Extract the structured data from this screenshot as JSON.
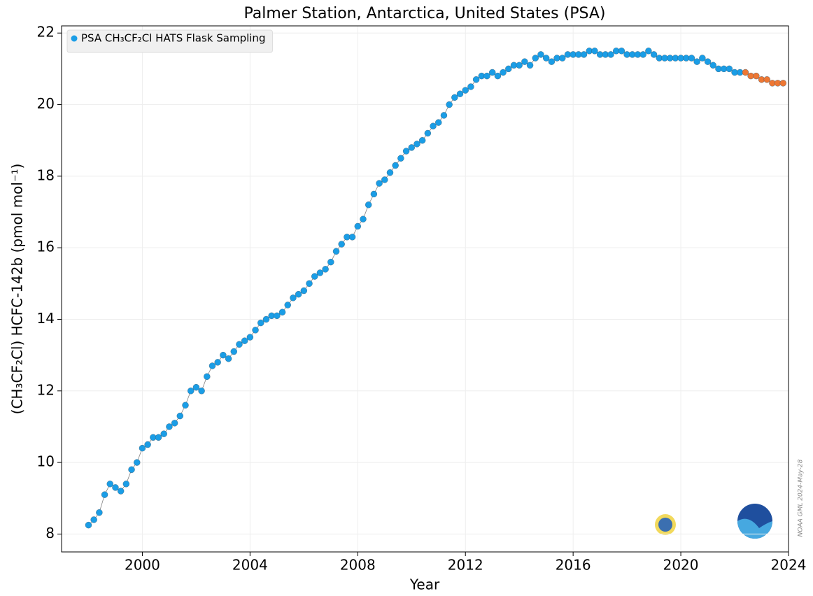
{
  "chart_data": {
    "type": "scatter",
    "title": "Palmer Station, Antarctica, United States (PSA)",
    "xlabel": "Year",
    "ylabel": "(CH₃CF₂Cl) HCFC-142b (pmol mol⁻¹)",
    "annotation": "NOAA GML 2024-May-28",
    "xlim": [
      1997,
      2024
    ],
    "xticks": [
      2000,
      2004,
      2008,
      2012,
      2016,
      2020,
      2024
    ],
    "ylim": [
      7.5,
      22.2
    ],
    "yticks": [
      8,
      10,
      12,
      14,
      16,
      18,
      20,
      22
    ],
    "grid": true,
    "legend": "upper left",
    "line_color": "#808080",
    "series": [
      {
        "name": "PSA CH₃CF₂Cl HATS Flask Sampling",
        "color": "#1a9de6",
        "x": [
          1998.0,
          1998.2,
          1998.4,
          1998.6,
          1998.8,
          1999.0,
          1999.2,
          1999.4,
          1999.6,
          1999.8,
          2000.0,
          2000.2,
          2000.4,
          2000.6,
          2000.8,
          2001.0,
          2001.2,
          2001.4,
          2001.6,
          2001.8,
          2002.0,
          2002.2,
          2002.4,
          2002.6,
          2002.8,
          2003.0,
          2003.2,
          2003.4,
          2003.6,
          2003.8,
          2004.0,
          2004.2,
          2004.4,
          2004.6,
          2004.8,
          2005.0,
          2005.2,
          2005.4,
          2005.6,
          2005.8,
          2006.0,
          2006.2,
          2006.4,
          2006.6,
          2006.8,
          2007.0,
          2007.2,
          2007.4,
          2007.6,
          2007.8,
          2008.0,
          2008.2,
          2008.4,
          2008.6,
          2008.8,
          2009.0,
          2009.2,
          2009.4,
          2009.6,
          2009.8,
          2010.0,
          2010.2,
          2010.4,
          2010.6,
          2010.8,
          2011.0,
          2011.2,
          2011.4,
          2011.6,
          2011.8,
          2012.0,
          2012.2,
          2012.4,
          2012.6,
          2012.8,
          2013.0,
          2013.2,
          2013.4,
          2013.6,
          2013.8,
          2014.0,
          2014.2,
          2014.4,
          2014.6,
          2014.8,
          2015.0,
          2015.2,
          2015.4,
          2015.6,
          2015.8,
          2016.0,
          2016.2,
          2016.4,
          2016.6,
          2016.8,
          2017.0,
          2017.2,
          2017.4,
          2017.6,
          2017.8,
          2018.0,
          2018.2,
          2018.4,
          2018.6,
          2018.8,
          2019.0,
          2019.2,
          2019.4,
          2019.6,
          2019.8,
          2020.0,
          2020.2,
          2020.4,
          2020.6,
          2020.8,
          2021.0,
          2021.2,
          2021.4,
          2021.6,
          2021.8,
          2022.0,
          2022.2
        ],
        "values": [
          8.25,
          8.4,
          8.6,
          9.1,
          9.4,
          9.3,
          9.2,
          9.4,
          9.8,
          10.0,
          10.4,
          10.5,
          10.7,
          10.7,
          10.8,
          11.0,
          11.1,
          11.3,
          11.6,
          12.0,
          12.1,
          12.0,
          12.4,
          12.7,
          12.8,
          13.0,
          12.9,
          13.1,
          13.3,
          13.4,
          13.5,
          13.7,
          13.9,
          14.0,
          14.1,
          14.1,
          14.2,
          14.4,
          14.6,
          14.7,
          14.8,
          15.0,
          15.2,
          15.3,
          15.4,
          15.6,
          15.9,
          16.1,
          16.3,
          16.3,
          16.6,
          16.8,
          17.2,
          17.5,
          17.8,
          17.9,
          18.1,
          18.3,
          18.5,
          18.7,
          18.8,
          18.9,
          19.0,
          19.2,
          19.4,
          19.5,
          19.7,
          20.0,
          20.2,
          20.3,
          20.4,
          20.5,
          20.7,
          20.8,
          20.8,
          20.9,
          20.8,
          20.9,
          21.0,
          21.1,
          21.1,
          21.2,
          21.1,
          21.3,
          21.4,
          21.3,
          21.2,
          21.3,
          21.3,
          21.4,
          21.4,
          21.4,
          21.4,
          21.5,
          21.5,
          21.4,
          21.4,
          21.4,
          21.5,
          21.5,
          21.4,
          21.4,
          21.4,
          21.4,
          21.5,
          21.4,
          21.3,
          21.3,
          21.3,
          21.3,
          21.3,
          21.3,
          21.3,
          21.2,
          21.3,
          21.2,
          21.1,
          21.0,
          21.0,
          21.0,
          20.9,
          20.9
        ]
      },
      {
        "color": "#ee7733",
        "x": [
          2022.4,
          2022.6,
          2022.8,
          2023.0,
          2023.2,
          2023.4,
          2023.6,
          2023.8
        ],
        "values": [
          20.9,
          20.8,
          20.8,
          20.7,
          20.7,
          20.6,
          20.6,
          20.6
        ]
      }
    ]
  }
}
